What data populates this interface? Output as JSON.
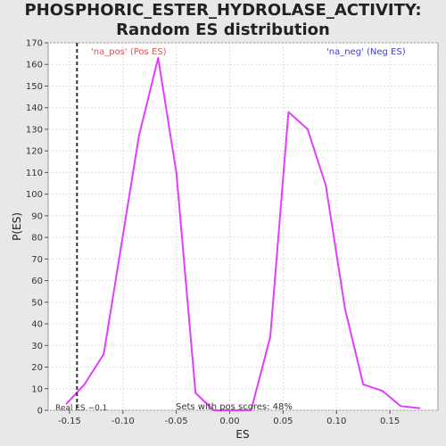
{
  "chart_data": {
    "type": "line",
    "title": "PHOSPHORIC_ESTER_HYDROLASE_ACTIVITY: Random ES distribution",
    "xlabel": "ES",
    "ylabel": "P(ES)",
    "xlim": [
      -0.17,
      0.195
    ],
    "ylim": [
      0,
      170
    ],
    "x_ticks": [
      -0.15,
      -0.1,
      -0.05,
      0.0,
      0.05,
      0.1,
      0.15
    ],
    "x_tick_labels": [
      "-0.15",
      "-0.10",
      "-0.05",
      "0.00",
      "0.05",
      "0.10",
      "0.15"
    ],
    "y_ticks": [
      0,
      10,
      20,
      30,
      40,
      50,
      60,
      70,
      80,
      90,
      100,
      110,
      120,
      130,
      140,
      150,
      160,
      170
    ],
    "grid": true,
    "series": [
      {
        "color": "#e040fb",
        "x": [
          -0.153,
          -0.136,
          -0.118,
          -0.085,
          -0.067,
          -0.05,
          -0.032,
          -0.015,
          0.003,
          0.02,
          0.038,
          0.055,
          0.073,
          0.09,
          0.108,
          0.125,
          0.143,
          0.16,
          0.178
        ],
        "y": [
          3,
          12,
          26,
          127,
          163,
          110,
          8,
          0,
          0,
          0,
          34,
          138,
          130,
          104,
          47,
          12,
          9,
          2,
          1
        ]
      }
    ],
    "real_es": {
      "value": -0.143,
      "label": "Real ES −0.1"
    },
    "annotations": {
      "pos": "'na_pos' (Pos ES)",
      "neg": "'na_neg' (Neg ES)",
      "pos_color": "#e05050",
      "neg_color": "#4040d0",
      "footer": "Sets with pos scores: 48%"
    }
  }
}
